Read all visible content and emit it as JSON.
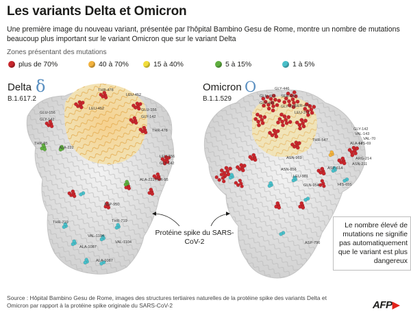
{
  "title": "Les variants Delta et Omicron",
  "subtitle": "Une première image du nouveau variant, présentée par l'hôpital Bambino Gesu de Rome, montre un nombre de mutations beaucoup plus important sur le variant Omicron que sur le variant Delta",
  "zones_label": "Zones présentant des mutations",
  "legend": [
    {
      "label": "plus de 70%",
      "color": "#c8262c"
    },
    {
      "label": "40 à 70%",
      "color": "#f2b23d"
    },
    {
      "label": "15 à 40%",
      "color": "#f1dd3a"
    },
    {
      "label": "5 à 15%",
      "color": "#5fae3f"
    },
    {
      "label": "1 à 5%",
      "color": "#49bfc9"
    }
  ],
  "delta": {
    "name": "Delta",
    "symbol": "δ",
    "code": "B.1.617.2",
    "labels": [
      "THR-478",
      "LEU-452",
      "GLU-156",
      "GLY-142",
      "THR-95",
      "ALA-222",
      "LEU-452",
      "GLU-156",
      "GLY-142",
      "THR-478",
      "LEU-156",
      "GLY-142",
      "ALA-222",
      "THR-95",
      "ASP-950",
      "THR-719",
      "VAL-1104",
      "THR-719",
      "ALA-1087",
      "VAL-1104",
      "ALA-1087"
    ]
  },
  "omicron": {
    "name": "Omicron",
    "symbol": "O",
    "code": "B.1.1.529",
    "labels": [
      "GLY-446",
      "GLN-493",
      "SER-440",
      "GLY-496",
      "SER-477",
      "GLY-339",
      "LEU-371",
      "GLY-142",
      "VAL-143",
      "ALA-67",
      "HIS-69",
      "VAL-70",
      "THR-547",
      "ARG-214",
      "ASN-211",
      "ASP-614",
      "HIS-655",
      "ASN-969",
      "ASN-856",
      "GLN-954",
      "LEU-981",
      "ASP-796"
    ]
  },
  "protein_label": "Protéine spike du SARS-CoV-2",
  "note": "Le nombre élevé de mutations ne signifie pas automatiquement que le variant est plus dangereux",
  "source": "Source : Hôpital Bambino Gesu de Rome, images des structures tertiaires naturelles de la protéine spike des variants Delta et Omicron par rapport à la protéine spike originale du SARS-CoV-2",
  "logo": "AFP"
}
